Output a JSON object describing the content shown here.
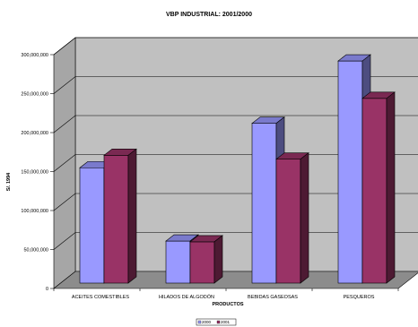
{
  "chart_data": {
    "type": "bar",
    "title": "VBP INDUSTRIAL: 2001/2000",
    "xlabel": "PRODUCTOS",
    "ylabel": "S/. 1994",
    "categories": [
      "ACEITES COMESTIBLES",
      "HILADOS DE ALGODÓN",
      "BEBIDAS GASEOSAS",
      "PESQUEROS"
    ],
    "series": [
      {
        "name": "2000",
        "values": [
          148000000,
          54000000,
          205000000,
          285000000
        ],
        "color": "#9999ff"
      },
      {
        "name": "2001",
        "values": [
          164000000,
          53000000,
          159000000,
          237000000
        ],
        "color": "#993366"
      }
    ],
    "ylim": [
      0,
      300000000
    ],
    "yticks": [
      "0",
      "50,000,000",
      "100,000,000",
      "150,000,000",
      "200,000,000",
      "250,000,000",
      "300,000,000"
    ],
    "grid": true,
    "legend_position": "bottom",
    "wall_color": "#c0c0c0",
    "three_d": true
  }
}
